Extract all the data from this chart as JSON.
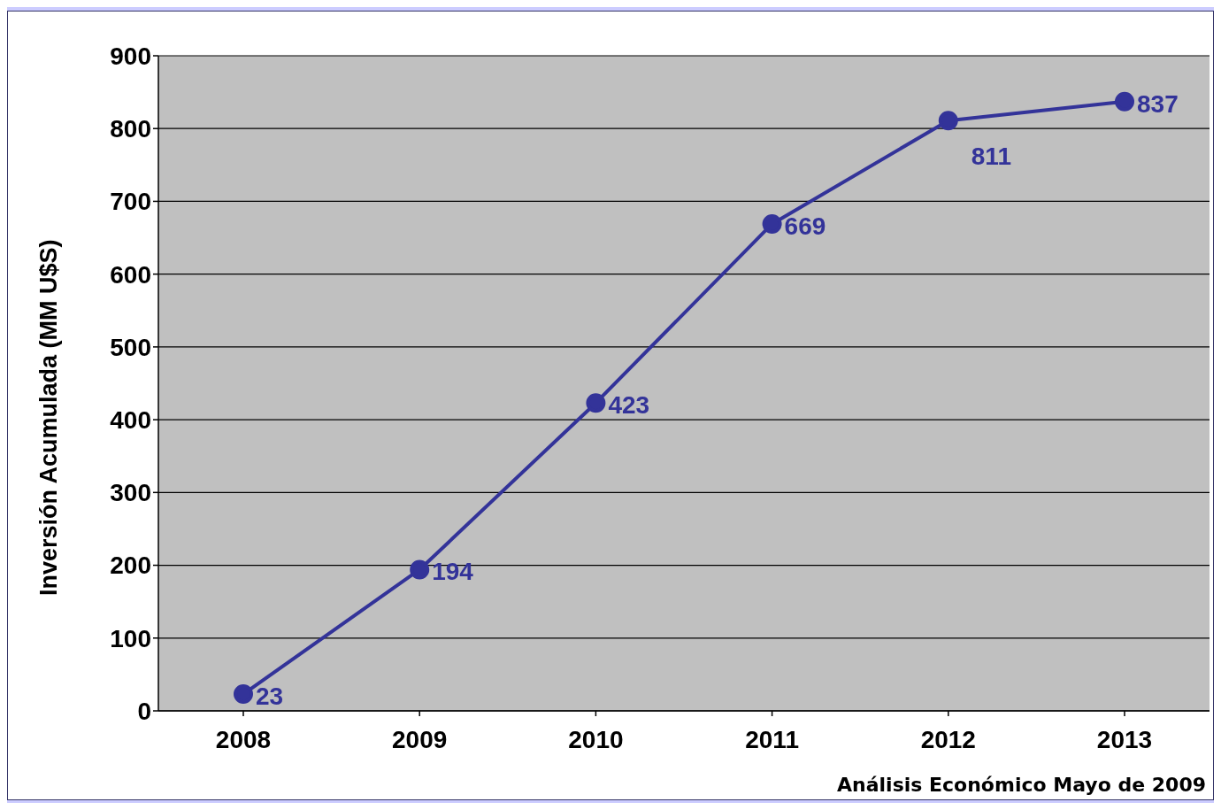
{
  "chart_data": {
    "type": "line",
    "ylabel": "Inversión Acumulada (MM U$S)",
    "categories": [
      "2008",
      "2009",
      "2010",
      "2011",
      "2012",
      "2013"
    ],
    "series": [
      {
        "color": "#333399",
        "values": [
          23,
          194,
          423,
          669,
          811,
          837
        ]
      }
    ],
    "ylim": [
      0,
      900
    ],
    "yticks": [
      0,
      100,
      200,
      300,
      400,
      500,
      600,
      700,
      800,
      900
    ],
    "grid": "y",
    "marker": "circle",
    "line_style": "solid",
    "data_labels": true,
    "annotations": [
      "Análisis Económico Mayo de 2009"
    ]
  }
}
